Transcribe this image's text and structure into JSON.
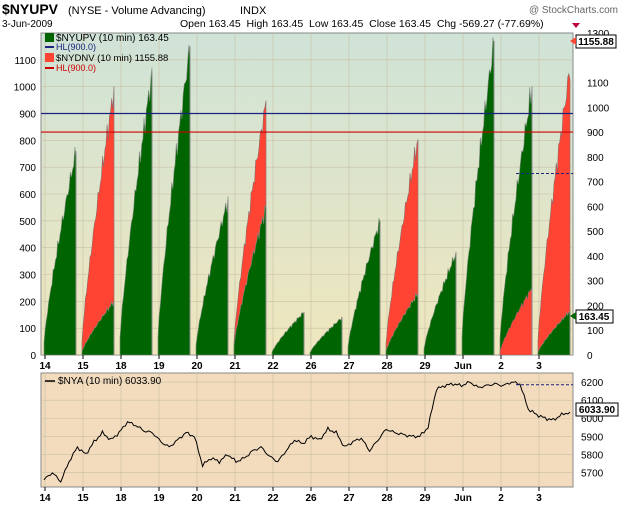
{
  "header": {
    "symbol": "$NYUPV",
    "name": "(NYSE - Volume Advancing)",
    "exchange": "INDX",
    "watermark": "@ StockCharts.com",
    "date": "3-Jun-2009",
    "quote": "Open 163.45  High 163.45  Low 163.45  Close 163.45  Chg -569.27 (-77.69%)"
  },
  "colors": {
    "up_fill": "#006400",
    "down_fill": "#ff4433",
    "hl_up": "#1a237e",
    "hl_down": "#cc0000",
    "panel1_top": "#cfe3d7",
    "panel1_bottom": "#efe6bd",
    "panel2_bg": "#f3dbbe",
    "grid": "#c9c0a4"
  },
  "legend": {
    "up": "$NYUPV (10 min) 163.45",
    "hl_up": "HL(900.0)",
    "down": "$NYDNV (10 min) 1155.88",
    "hl_down": "HL(900.0)",
    "nya": "$NYA (10 min) 6033.90"
  },
  "tags": {
    "down": "1155.88",
    "up": "163.45",
    "nya": "6033.90"
  },
  "chart_data": [
    {
      "type": "area",
      "sessions": [
        "14",
        "15",
        "18",
        "19",
        "20",
        "21",
        "22",
        "26",
        "27",
        "28",
        "29",
        "Jun",
        "2",
        "3"
      ],
      "left_axis": {
        "ylim": [
          0,
          1200
        ],
        "ticks": [
          0,
          100,
          200,
          300,
          400,
          500,
          600,
          700,
          800,
          900,
          1000,
          1100
        ]
      },
      "right_axis": {
        "ylim": [
          0,
          1300
        ],
        "ticks": [
          0,
          100,
          200,
          300,
          400,
          500,
          600,
          700,
          800,
          900,
          1000,
          1100,
          1200,
          1300
        ]
      },
      "series": [
        {
          "name": "$NYUPV (10 min)",
          "axis": "left",
          "session_close": [
            760,
            200,
            1050,
            1150,
            580,
            550,
            160,
            140,
            500,
            230,
            380,
            1170,
            1000,
            163.45
          ]
        },
        {
          "name": "$NYDNV (10 min)",
          "axis": "right",
          "session_close": [
            0,
            1070,
            0,
            0,
            0,
            1020,
            0,
            0,
            0,
            870,
            0,
            0,
            270,
            1155.88
          ]
        }
      ],
      "dominant": [
        "up",
        "down",
        "up",
        "up",
        "up",
        "down",
        "up",
        "up",
        "up",
        "down",
        "up",
        "up",
        "up",
        "down"
      ],
      "horizontal_lines": [
        {
          "name": "HL(900.0)",
          "axis": "left",
          "value": 900
        },
        {
          "name": "HL(900.0)",
          "axis": "right",
          "value": 900
        }
      ],
      "reference_value": 733
    },
    {
      "type": "line",
      "sessions": [
        "14",
        "15",
        "18",
        "19",
        "20",
        "21",
        "22",
        "26",
        "27",
        "28",
        "29",
        "Jun",
        "2",
        "3"
      ],
      "ylim": [
        5620,
        6250
      ],
      "yticks": [
        5700,
        5800,
        5900,
        6000,
        6100,
        6200
      ],
      "series": [
        {
          "name": "$NYA (10 min)",
          "values": [
            5660,
            5700,
            5650,
            5760,
            5840,
            5800,
            5870,
            5920,
            5880,
            5920,
            5980,
            5960,
            5930,
            5920,
            5870,
            5840,
            5880,
            5920,
            5900,
            5740,
            5780,
            5760,
            5800,
            5760,
            5780,
            5820,
            5840,
            5790,
            5760,
            5820,
            5880,
            5860,
            5900,
            5880,
            5940,
            5920,
            5840,
            5870,
            5890,
            5820,
            5880,
            5940,
            5920,
            5910,
            5900,
            5900,
            5950,
            6160,
            6180,
            6190,
            6180,
            6200,
            6170,
            6180,
            6190,
            6180,
            6200,
            6190,
            6050,
            6020,
            6000,
            5990,
            6020,
            6033.9
          ],
          "last": 6033.9
        }
      ],
      "reference_value": 6185
    }
  ]
}
